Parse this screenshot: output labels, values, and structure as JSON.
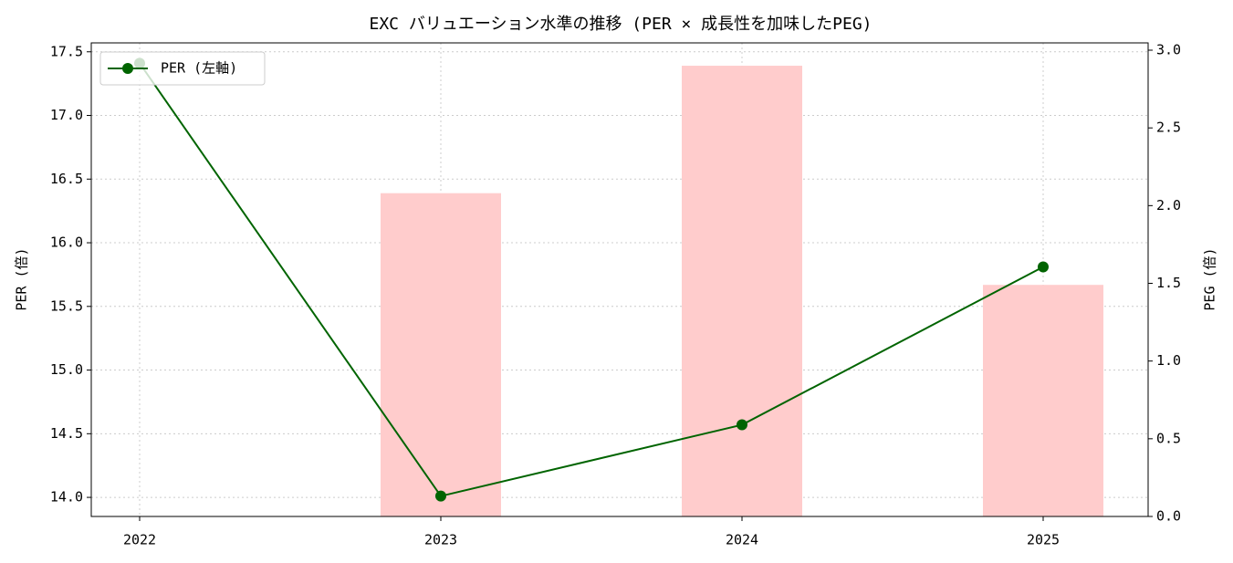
{
  "chart_data": {
    "type": "bar-line",
    "title": "EXC バリュエーション水準の推移 (PER × 成長性を加味したPEG)",
    "categories": [
      "2022",
      "2023",
      "2024",
      "2025"
    ],
    "series": [
      {
        "type": "bar",
        "axis": "y2",
        "color": "#ffcccc",
        "values": [
          null,
          2.08,
          2.9,
          1.49
        ]
      },
      {
        "type": "line",
        "name": "PER (左軸)",
        "color": "#006400",
        "values": [
          17.41,
          14.01,
          14.57,
          15.81
        ]
      }
    ],
    "ylabel": "PER (倍)",
    "y2label": "PEG (倍)",
    "ylim": [
      13.85,
      17.57
    ],
    "yticks": [
      {
        "value": 14,
        "label": "14.0"
      },
      14.5,
      {
        "value": 15,
        "label": "15.0"
      },
      15.5,
      {
        "value": 16,
        "label": "16.0"
      },
      16.5,
      {
        "value": 17,
        "label": "17.0"
      },
      17.5
    ],
    "y2lim": [
      0,
      3.047
    ],
    "y2ticks": [
      {
        "value": 0,
        "label": "0.0"
      },
      0.5,
      {
        "value": 1,
        "label": "1.0"
      },
      1.5,
      {
        "value": 2,
        "label": "2.0"
      },
      2.5,
      {
        "value": 3,
        "label": "3.0"
      }
    ],
    "grid": true,
    "legend": "upper left"
  }
}
